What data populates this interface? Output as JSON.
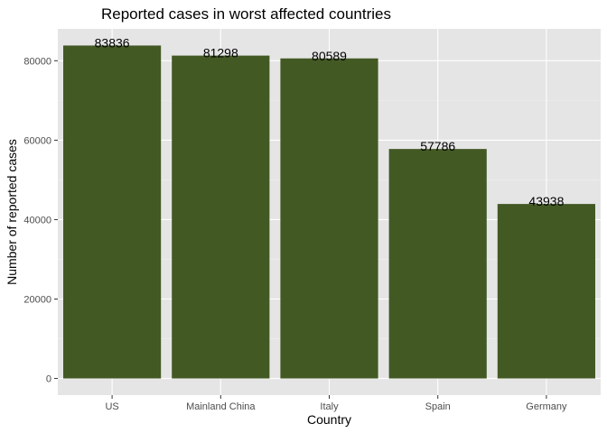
{
  "chart_data": {
    "type": "bar",
    "title": "Reported cases in worst affected countries",
    "xlabel": "Country",
    "ylabel": "Number of reported cases",
    "categories": [
      "US",
      "Mainland China",
      "Italy",
      "Spain",
      "Germany"
    ],
    "values": [
      83836,
      81298,
      80589,
      57786,
      43938
    ],
    "data_labels": [
      "83836",
      "81298",
      "80589",
      "57786",
      "43938"
    ],
    "y_ticks": [
      0,
      20000,
      40000,
      60000,
      80000
    ],
    "y_tick_labels": [
      "0",
      "20000",
      "40000",
      "60000",
      "80000"
    ],
    "ylim": [
      -4192,
      88028
    ],
    "grid": true,
    "colors": {
      "bar": "#435924",
      "panel": "#e5e5e5",
      "grid_major": "#ffffff",
      "grid_minor": "#f0f0f0"
    }
  }
}
